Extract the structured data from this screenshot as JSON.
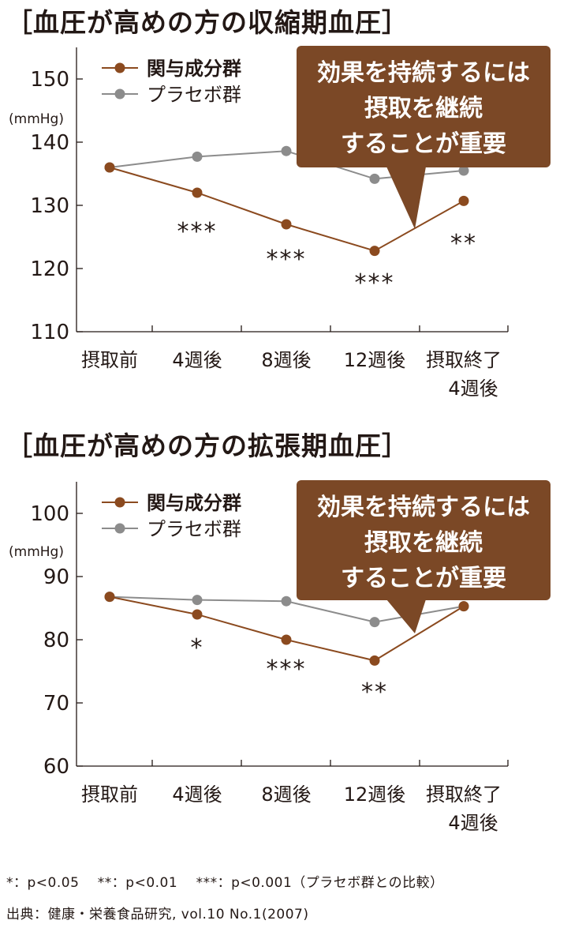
{
  "colors": {
    "active": "#8b4a1f",
    "placebo": "#8c8c8c",
    "callout_bg": "#7b4826",
    "axis": "#231815"
  },
  "legend": {
    "active": "関与成分群",
    "placebo": "プラセボ群"
  },
  "callout": {
    "lines": [
      "効果を持続するには",
      "摂取を継続",
      "することが重要"
    ]
  },
  "chart_data": [
    {
      "type": "line",
      "title": "［血圧が高めの方の収縮期血圧］",
      "ylabel": "(mmHg)",
      "ylim": [
        110,
        155
      ],
      "yticks": [
        110,
        120,
        130,
        140,
        150
      ],
      "categories": [
        [
          "摂取前"
        ],
        [
          "4週後"
        ],
        [
          "8週後"
        ],
        [
          "12週後"
        ],
        [
          "摂取終了",
          "4週後"
        ]
      ],
      "series": [
        {
          "name": "関与成分群",
          "key": "active",
          "values": [
            136,
            132,
            127,
            122.8,
            130.7
          ]
        },
        {
          "name": "プラセボ群",
          "key": "placebo",
          "values": [
            136,
            137.7,
            138.6,
            134.2,
            135.5
          ]
        }
      ],
      "significance": [
        "",
        "***",
        "***",
        "***",
        "**"
      ],
      "grid": false,
      "legend_position": "top-left"
    },
    {
      "type": "line",
      "title": "［血圧が高めの方の拡張期血圧］",
      "ylabel": "(mmHg)",
      "ylim": [
        60,
        105
      ],
      "yticks": [
        60,
        70,
        80,
        90,
        100
      ],
      "categories": [
        [
          "摂取前"
        ],
        [
          "4週後"
        ],
        [
          "8週後"
        ],
        [
          "12週後"
        ],
        [
          "摂取終了",
          "4週後"
        ]
      ],
      "series": [
        {
          "name": "関与成分群",
          "key": "active",
          "values": [
            86.8,
            84,
            80,
            76.7,
            85.3
          ]
        },
        {
          "name": "プラセボ群",
          "key": "placebo",
          "values": [
            86.8,
            86.3,
            86.1,
            82.8,
            85.3
          ]
        }
      ],
      "significance": [
        "",
        "*",
        "***",
        "**",
        ""
      ],
      "grid": false,
      "legend_position": "top-left"
    }
  ],
  "footnotes": {
    "significance": "*：p<0.05　 **：p<0.01　 ***：p<0.001（プラセボ群との比較）",
    "source": "出典：健康・栄養食品研究, vol.10 No.1(2007)"
  }
}
